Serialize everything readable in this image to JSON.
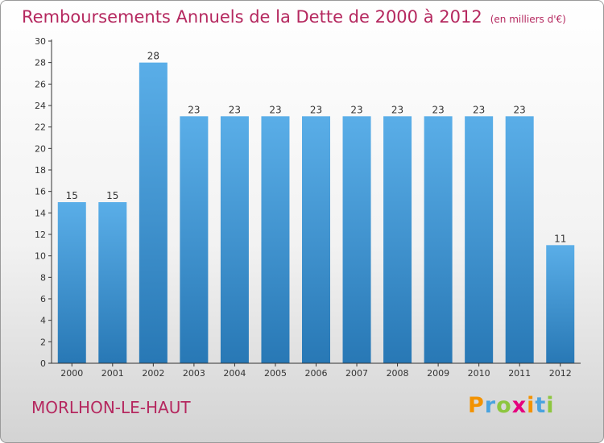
{
  "title": "Remboursements Annuels de la Dette de 2000 à 2012",
  "unit": "(en milliers d'€)",
  "city": "MORLHON-LE-HAUT",
  "logo": "Proxiti",
  "colors": {
    "title": "#b5285f",
    "bar_top": "#5aaee8",
    "bar_bottom": "#2878b5",
    "axis": "#333333",
    "label": "#333333"
  },
  "chart_data": {
    "type": "bar",
    "categories": [
      "2000",
      "2001",
      "2002",
      "2003",
      "2004",
      "2005",
      "2006",
      "2007",
      "2008",
      "2009",
      "2010",
      "2011",
      "2012"
    ],
    "values": [
      15,
      15,
      28,
      23,
      23,
      23,
      23,
      23,
      23,
      23,
      23,
      23,
      11
    ],
    "ylim": [
      0,
      30
    ],
    "yticks": [
      0,
      2,
      4,
      6,
      8,
      10,
      12,
      14,
      16,
      18,
      20,
      22,
      24,
      26,
      28,
      30
    ],
    "data_labels": true,
    "grid": false
  }
}
